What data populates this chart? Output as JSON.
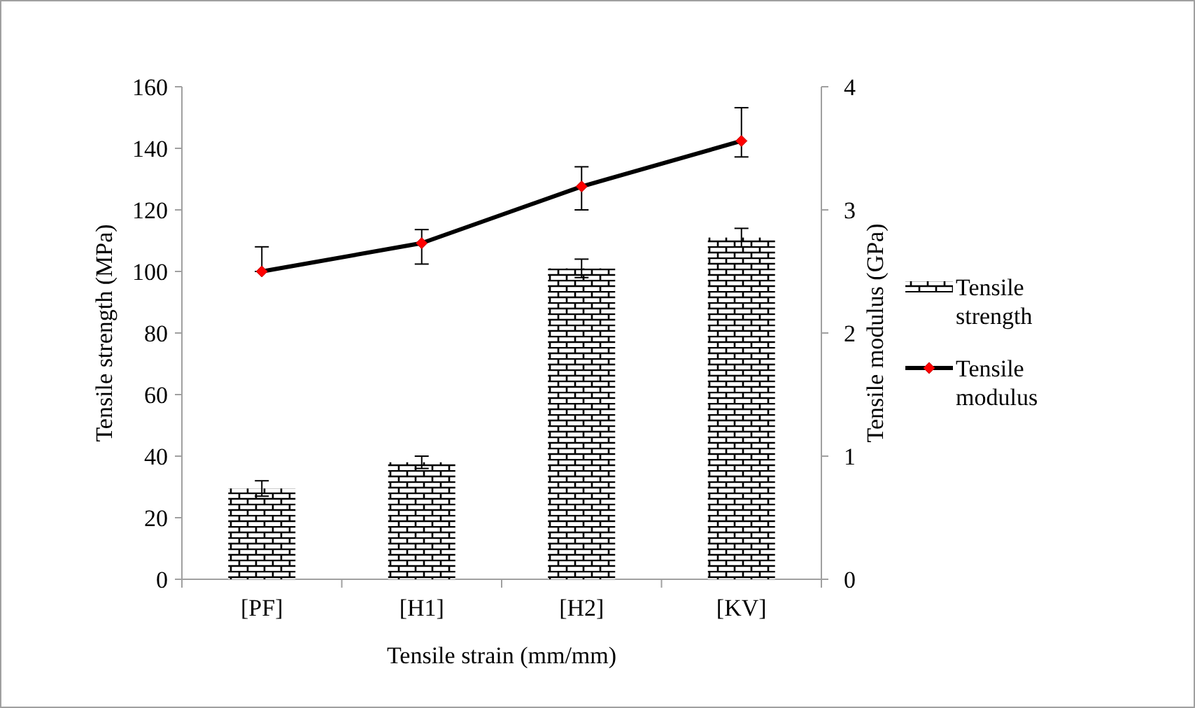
{
  "chart_data": {
    "type": "bar",
    "xlabel": "Tensile strain (mm/mm)",
    "ylabel": "Tensile strength (MPa)",
    "y2label": "Tensile modulus (GPa)",
    "categories": [
      "[PF]",
      "[H1]",
      "[H2]",
      "[KV]"
    ],
    "series": [
      {
        "name": "Tensile strength",
        "color": "#000000",
        "values": [
          29.5,
          38,
          101,
          111
        ],
        "errors": [
          2.5,
          2,
          3,
          3
        ]
      },
      {
        "name": "Tensile modulus",
        "type": "line",
        "axis": "y2",
        "color": "#000000",
        "values": [
          2.5,
          2.73,
          3.19,
          3.56
        ],
        "errors": [
          [
            2.5,
            2.7
          ],
          [
            2.56,
            2.84
          ],
          [
            3.0,
            3.35
          ],
          [
            3.43,
            3.83
          ]
        ],
        "marker": "diamond"
      }
    ],
    "ylim": [
      0,
      160
    ],
    "yticks": [
      0,
      20,
      40,
      60,
      80,
      100,
      120,
      140,
      160
    ],
    "y2lim": [
      0,
      4
    ],
    "y2ticks": [
      0,
      1,
      2,
      3,
      4
    ],
    "legend": "right",
    "grid": false
  }
}
